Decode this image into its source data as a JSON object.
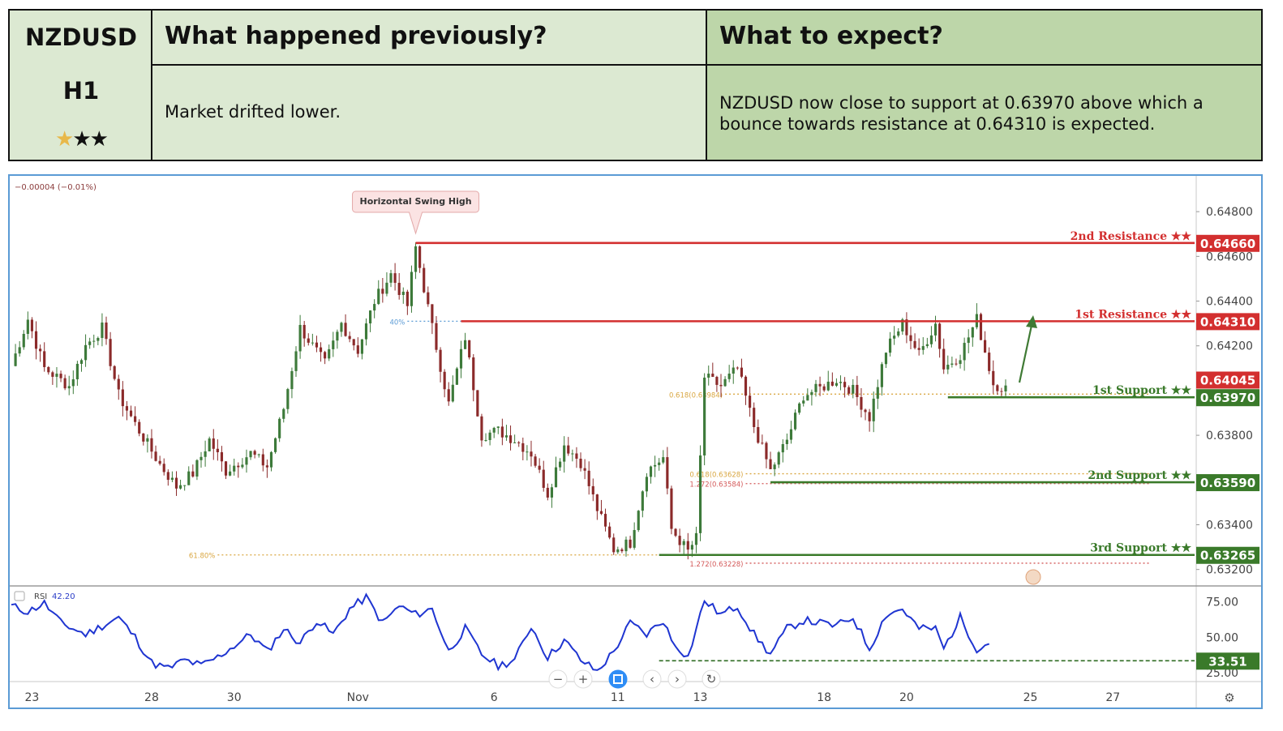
{
  "header": {
    "symbol": "NZDUSD",
    "timeframe": "H1",
    "stars_filled": 1,
    "stars_total": 3,
    "prev_title": "What happened previously?",
    "exp_title": "What to expect?",
    "prev_text": "Market drifted lower.",
    "exp_text": "NZDUSD now close to support at 0.63970 above which a bounce towards resistance at 0.64310 is expected."
  },
  "chart_data": {
    "type": "candlestick",
    "instrument": "NZDUSD",
    "timeframe": "H1",
    "change_readout": "−0.00004 (−0.01%)",
    "annotation": "Horizontal Swing High",
    "ylim": [
      0.6313,
      0.6496
    ],
    "y_ticks": [
      "0.64800",
      "0.64600",
      "0.64400",
      "0.64200",
      "0.63800",
      "0.63400",
      "0.63200"
    ],
    "y_tick_values": [
      0.648,
      0.646,
      0.644,
      0.642,
      0.638,
      0.634,
      0.632
    ],
    "x_ticks": [
      "23",
      "28",
      "30",
      "Nov",
      "6",
      "11",
      "13",
      "18",
      "20",
      "25",
      "27"
    ],
    "x_tick_index": [
      5,
      34,
      54,
      84,
      117,
      147,
      167,
      197,
      217,
      247,
      267
    ],
    "last_price": "0.64045",
    "last_price_value": 0.64045,
    "levels": [
      {
        "label": "2nd Resistance ★★",
        "value": 0.6466,
        "tag": "0.64660",
        "color": "#d32f2f",
        "start": 98
      },
      {
        "label": "1st Resistance ★★",
        "value": 0.6431,
        "tag": "0.64310",
        "color": "#d32f2f",
        "start": 109
      },
      {
        "label": "1st Support ★★",
        "value": 0.6397,
        "tag": "0.63970",
        "color": "#3a7a2a",
        "start": 227
      },
      {
        "label": "2nd Support ★★",
        "value": 0.6359,
        "tag": "0.63590",
        "color": "#3a7a2a",
        "start": 184
      },
      {
        "label": "3rd Support ★★",
        "value": 0.63265,
        "tag": "0.63265",
        "color": "#3a7a2a",
        "start": 157
      }
    ],
    "fib_lines": [
      {
        "label": "61.80%",
        "value": 0.63265,
        "color": "#d9a640",
        "from": 50,
        "to": 157
      },
      {
        "label": "40%",
        "value": 0.6431,
        "color": "#5b9bd5",
        "from": 96,
        "to": 109
      },
      {
        "label": "0.618(0.63984)",
        "value": 0.63984,
        "color": "#d9a640",
        "from": 173,
        "to": 276
      },
      {
        "label": "0.618(0.63628)",
        "value": 0.63628,
        "color": "#d9a640",
        "from": 178,
        "to": 276
      },
      {
        "label": "1.272(0.63584)",
        "value": 0.63584,
        "color": "#d45a5a",
        "from": 178,
        "to": 276
      },
      {
        "label": "1.272(0.63228)",
        "value": 0.63228,
        "color": "#d45a5a",
        "from": 178,
        "to": 276
      }
    ],
    "candles_anchor_close": [
      [
        0,
        0.6411
      ],
      [
        4,
        0.6432
      ],
      [
        8,
        0.641
      ],
      [
        14,
        0.6402
      ],
      [
        18,
        0.642
      ],
      [
        22,
        0.6428
      ],
      [
        26,
        0.6398
      ],
      [
        30,
        0.6385
      ],
      [
        36,
        0.6367
      ],
      [
        40,
        0.6357
      ],
      [
        44,
        0.6363
      ],
      [
        48,
        0.6378
      ],
      [
        52,
        0.6364
      ],
      [
        58,
        0.6372
      ],
      [
        62,
        0.6366
      ],
      [
        66,
        0.6392
      ],
      [
        70,
        0.6428
      ],
      [
        76,
        0.6412
      ],
      [
        80,
        0.643
      ],
      [
        84,
        0.6418
      ],
      [
        88,
        0.644
      ],
      [
        92,
        0.6452
      ],
      [
        96,
        0.6438
      ],
      [
        98,
        0.6464
      ],
      [
        102,
        0.6428
      ],
      [
        106,
        0.6394
      ],
      [
        110,
        0.6424
      ],
      [
        114,
        0.638
      ],
      [
        118,
        0.6382
      ],
      [
        122,
        0.6378
      ],
      [
        126,
        0.6372
      ],
      [
        130,
        0.6354
      ],
      [
        134,
        0.6376
      ],
      [
        138,
        0.6368
      ],
      [
        142,
        0.6347
      ],
      [
        146,
        0.6329
      ],
      [
        150,
        0.6332
      ],
      [
        154,
        0.6364
      ],
      [
        158,
        0.637
      ],
      [
        160,
        0.6338
      ],
      [
        164,
        0.6328
      ],
      [
        166,
        0.6334
      ],
      [
        168,
        0.6406
      ],
      [
        172,
        0.6402
      ],
      [
        176,
        0.641
      ],
      [
        180,
        0.6384
      ],
      [
        184,
        0.6364
      ],
      [
        188,
        0.6378
      ],
      [
        192,
        0.6398
      ],
      [
        196,
        0.6401
      ],
      [
        200,
        0.6405
      ],
      [
        204,
        0.64
      ],
      [
        208,
        0.6388
      ],
      [
        212,
        0.6418
      ],
      [
        216,
        0.643
      ],
      [
        220,
        0.6416
      ],
      [
        224,
        0.643
      ],
      [
        226,
        0.641
      ],
      [
        230,
        0.6416
      ],
      [
        234,
        0.6432
      ],
      [
        238,
        0.6403
      ],
      [
        241,
        0.6401
      ]
    ],
    "rsi": {
      "label": "RSI",
      "value_label": "42.20",
      "ylim": [
        20,
        85
      ],
      "y_ticks": [
        "75.00",
        "50.00",
        "25.00"
      ],
      "y_tick_values": [
        75,
        50,
        25
      ],
      "level": 33.51,
      "level_tag": "33.51",
      "anchors": [
        [
          0,
          72
        ],
        [
          4,
          68
        ],
        [
          8,
          74
        ],
        [
          12,
          60
        ],
        [
          18,
          52
        ],
        [
          22,
          58
        ],
        [
          26,
          64
        ],
        [
          30,
          50
        ],
        [
          34,
          32
        ],
        [
          38,
          28
        ],
        [
          42,
          34
        ],
        [
          46,
          30
        ],
        [
          50,
          36
        ],
        [
          54,
          44
        ],
        [
          58,
          52
        ],
        [
          62,
          40
        ],
        [
          66,
          56
        ],
        [
          70,
          46
        ],
        [
          74,
          62
        ],
        [
          78,
          52
        ],
        [
          82,
          70
        ],
        [
          86,
          78
        ],
        [
          90,
          60
        ],
        [
          94,
          72
        ],
        [
          98,
          66
        ],
        [
          102,
          70
        ],
        [
          106,
          40
        ],
        [
          110,
          56
        ],
        [
          114,
          38
        ],
        [
          118,
          30
        ],
        [
          122,
          34
        ],
        [
          126,
          58
        ],
        [
          130,
          36
        ],
        [
          134,
          48
        ],
        [
          138,
          34
        ],
        [
          142,
          26
        ],
        [
          146,
          40
        ],
        [
          150,
          60
        ],
        [
          154,
          52
        ],
        [
          158,
          62
        ],
        [
          160,
          48
        ],
        [
          164,
          36
        ],
        [
          168,
          76
        ],
        [
          172,
          66
        ],
        [
          176,
          72
        ],
        [
          180,
          52
        ],
        [
          184,
          38
        ],
        [
          188,
          56
        ],
        [
          192,
          62
        ],
        [
          196,
          60
        ],
        [
          200,
          58
        ],
        [
          204,
          64
        ],
        [
          208,
          42
        ],
        [
          212,
          66
        ],
        [
          216,
          70
        ],
        [
          220,
          56
        ],
        [
          224,
          56
        ],
        [
          226,
          42
        ],
        [
          230,
          64
        ],
        [
          234,
          42
        ],
        [
          237,
          46
        ]
      ]
    }
  },
  "toolbar": {
    "icons": [
      "zoom-out",
      "zoom-in",
      "reset-view",
      "scroll-left",
      "scroll-right",
      "reset"
    ],
    "zoom_out": "−",
    "zoom_in": "+",
    "left": "‹",
    "right": "›",
    "reset": "↻"
  },
  "settings_icon": "⚙"
}
